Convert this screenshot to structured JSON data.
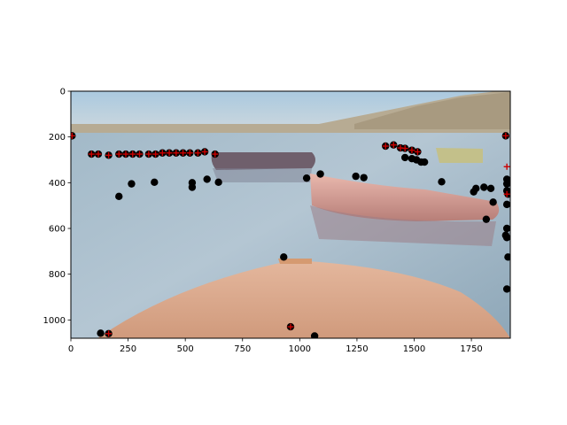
{
  "chart_data": {
    "type": "scatter",
    "background": "photo of a calm lake with moored pink boats and the bow of a tan boat in the foreground",
    "xlim": [
      0,
      1920
    ],
    "ylim": [
      1080,
      0
    ],
    "y_inverted": true,
    "grid": false,
    "xticks": [
      {
        "value": 0,
        "label": "0"
      },
      {
        "value": 250,
        "label": "250"
      },
      {
        "value": 500,
        "label": "500"
      },
      {
        "value": 750,
        "label": "750"
      },
      {
        "value": 1000,
        "label": "1000"
      },
      {
        "value": 1250,
        "label": "1250"
      },
      {
        "value": 1500,
        "label": "1500"
      },
      {
        "value": 1750,
        "label": "1750"
      }
    ],
    "yticks": [
      {
        "value": 0,
        "label": "0"
      },
      {
        "value": 200,
        "label": "200"
      },
      {
        "value": 400,
        "label": "400"
      },
      {
        "value": 600,
        "label": "600"
      },
      {
        "value": 800,
        "label": "800"
      },
      {
        "value": 1000,
        "label": "1000"
      }
    ],
    "series": [
      {
        "marker": "circle",
        "color": "#000000",
        "points": [
          [
            5,
            195
          ],
          [
            90,
            275
          ],
          [
            120,
            275
          ],
          [
            165,
            280
          ],
          [
            210,
            275
          ],
          [
            240,
            275
          ],
          [
            270,
            275
          ],
          [
            300,
            275
          ],
          [
            340,
            275
          ],
          [
            370,
            275
          ],
          [
            400,
            270
          ],
          [
            430,
            270
          ],
          [
            460,
            270
          ],
          [
            490,
            270
          ],
          [
            520,
            270
          ],
          [
            555,
            270
          ],
          [
            585,
            265
          ],
          [
            630,
            275
          ],
          [
            210,
            460
          ],
          [
            265,
            405
          ],
          [
            365,
            398
          ],
          [
            530,
            400
          ],
          [
            530,
            420
          ],
          [
            595,
            385
          ],
          [
            645,
            398
          ],
          [
            1030,
            380
          ],
          [
            1090,
            362
          ],
          [
            1245,
            372
          ],
          [
            1280,
            378
          ],
          [
            1375,
            240
          ],
          [
            1410,
            235
          ],
          [
            1440,
            248
          ],
          [
            1460,
            290
          ],
          [
            1490,
            295
          ],
          [
            1510,
            300
          ],
          [
            1530,
            310
          ],
          [
            1545,
            310
          ],
          [
            1460,
            250
          ],
          [
            1490,
            258
          ],
          [
            1515,
            265
          ],
          [
            1620,
            396
          ],
          [
            1760,
            440
          ],
          [
            1770,
            425
          ],
          [
            1805,
            420
          ],
          [
            1835,
            425
          ],
          [
            1815,
            560
          ],
          [
            1845,
            485
          ],
          [
            1900,
            195
          ],
          [
            1905,
            385
          ],
          [
            1905,
            405
          ],
          [
            1905,
            435
          ],
          [
            1910,
            450
          ],
          [
            1905,
            495
          ],
          [
            1905,
            600
          ],
          [
            1900,
            630
          ],
          [
            1905,
            640
          ],
          [
            1910,
            725
          ],
          [
            1905,
            865
          ],
          [
            930,
            725
          ],
          [
            960,
            1030
          ],
          [
            1065,
            1070
          ],
          [
            130,
            1058
          ],
          [
            165,
            1060
          ]
        ]
      },
      {
        "marker": "plus",
        "color": "#cc0000",
        "points": [
          [
            5,
            195
          ],
          [
            90,
            275
          ],
          [
            120,
            275
          ],
          [
            165,
            280
          ],
          [
            210,
            275
          ],
          [
            240,
            275
          ],
          [
            270,
            275
          ],
          [
            300,
            275
          ],
          [
            340,
            275
          ],
          [
            370,
            275
          ],
          [
            400,
            270
          ],
          [
            430,
            270
          ],
          [
            460,
            270
          ],
          [
            490,
            270
          ],
          [
            520,
            270
          ],
          [
            555,
            270
          ],
          [
            585,
            265
          ],
          [
            630,
            275
          ],
          [
            1375,
            240
          ],
          [
            1410,
            235
          ],
          [
            1440,
            248
          ],
          [
            1460,
            250
          ],
          [
            1490,
            258
          ],
          [
            1515,
            265
          ],
          [
            1900,
            195
          ],
          [
            1905,
            330
          ],
          [
            1905,
            450
          ],
          [
            960,
            1030
          ],
          [
            165,
            1060
          ]
        ]
      }
    ]
  }
}
